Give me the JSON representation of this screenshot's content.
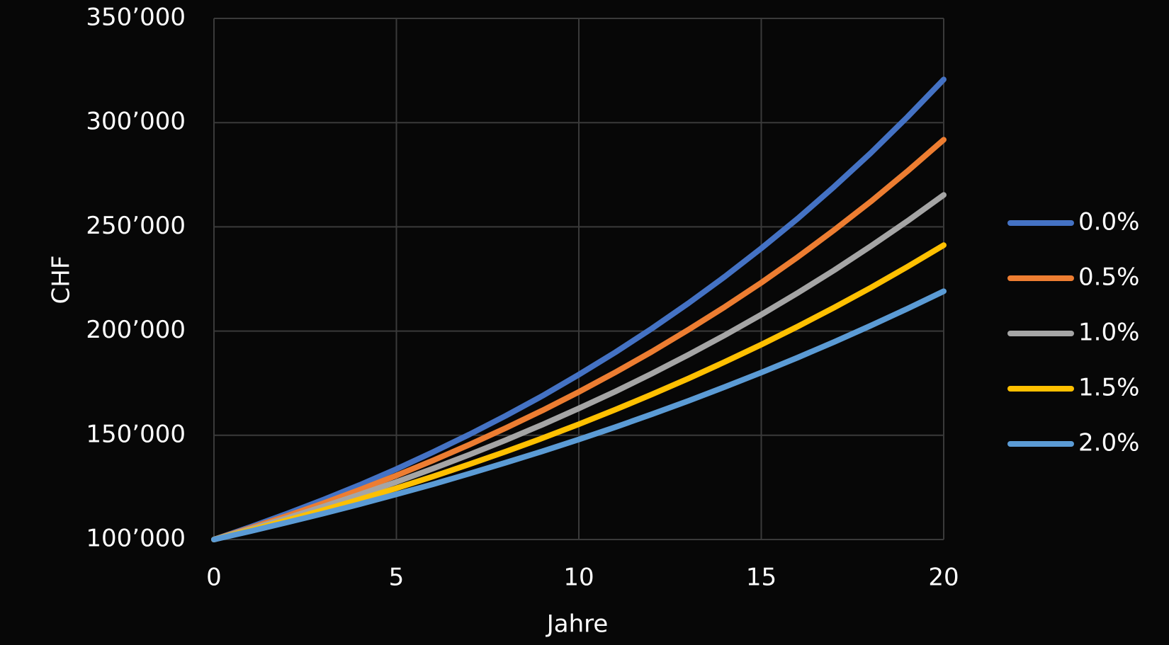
{
  "chart_data": {
    "type": "line",
    "x_label": "Jahre",
    "y_label": "CHF",
    "x": [
      0,
      1,
      2,
      3,
      4,
      5,
      6,
      7,
      8,
      9,
      10,
      11,
      12,
      13,
      14,
      15,
      16,
      17,
      18,
      19,
      20
    ],
    "series": [
      {
        "name": "0.0%",
        "color": "#4472c4",
        "values": [
          100000,
          106000,
          112400,
          119100,
          126200,
          133800,
          141900,
          150400,
          159400,
          168900,
          179100,
          189800,
          201200,
          213300,
          226100,
          239700,
          254000,
          269300,
          285400,
          302600,
          320700
        ]
      },
      {
        "name": "0.5%",
        "color": "#ed7d31",
        "values": [
          100000,
          105500,
          111300,
          117400,
          123900,
          130700,
          137900,
          145500,
          153500,
          161900,
          170800,
          180200,
          190100,
          200600,
          211600,
          223200,
          235500,
          248500,
          262100,
          276600,
          291800
        ]
      },
      {
        "name": "1.0%",
        "color": "#a5a5a5",
        "values": [
          100000,
          105000,
          110300,
          115800,
          121600,
          127600,
          134000,
          140700,
          147700,
          155100,
          162900,
          171000,
          179600,
          188600,
          198000,
          207900,
          218300,
          229200,
          240700,
          252700,
          265300
        ]
      },
      {
        "name": "1.5%",
        "color": "#ffc000",
        "values": [
          100000,
          104500,
          109200,
          114100,
          119300,
          124600,
          130200,
          136100,
          142200,
          148600,
          155300,
          162300,
          169600,
          177200,
          185200,
          193500,
          202200,
          211300,
          220800,
          230800,
          241200
        ]
      },
      {
        "name": "2.0%",
        "color": "#5b9bd5",
        "values": [
          100000,
          104000,
          108200,
          112500,
          117000,
          121700,
          126500,
          131600,
          136900,
          142300,
          148000,
          153900,
          160100,
          166500,
          173200,
          180100,
          187300,
          194800,
          202600,
          210700,
          219100
        ]
      }
    ],
    "xlim": [
      0,
      20
    ],
    "xticks": [
      0,
      5,
      10,
      15,
      20
    ],
    "ylim": [
      100000,
      350000
    ],
    "yticks": [
      {
        "value": 100000,
        "label": "100’000"
      },
      {
        "value": 150000,
        "label": "150’000"
      },
      {
        "value": 200000,
        "label": "200’000"
      },
      {
        "value": 250000,
        "label": "250’000"
      },
      {
        "value": 300000,
        "label": "300’000"
      },
      {
        "value": 350000,
        "label": "350’000"
      }
    ],
    "grid": true,
    "legend": "right"
  }
}
